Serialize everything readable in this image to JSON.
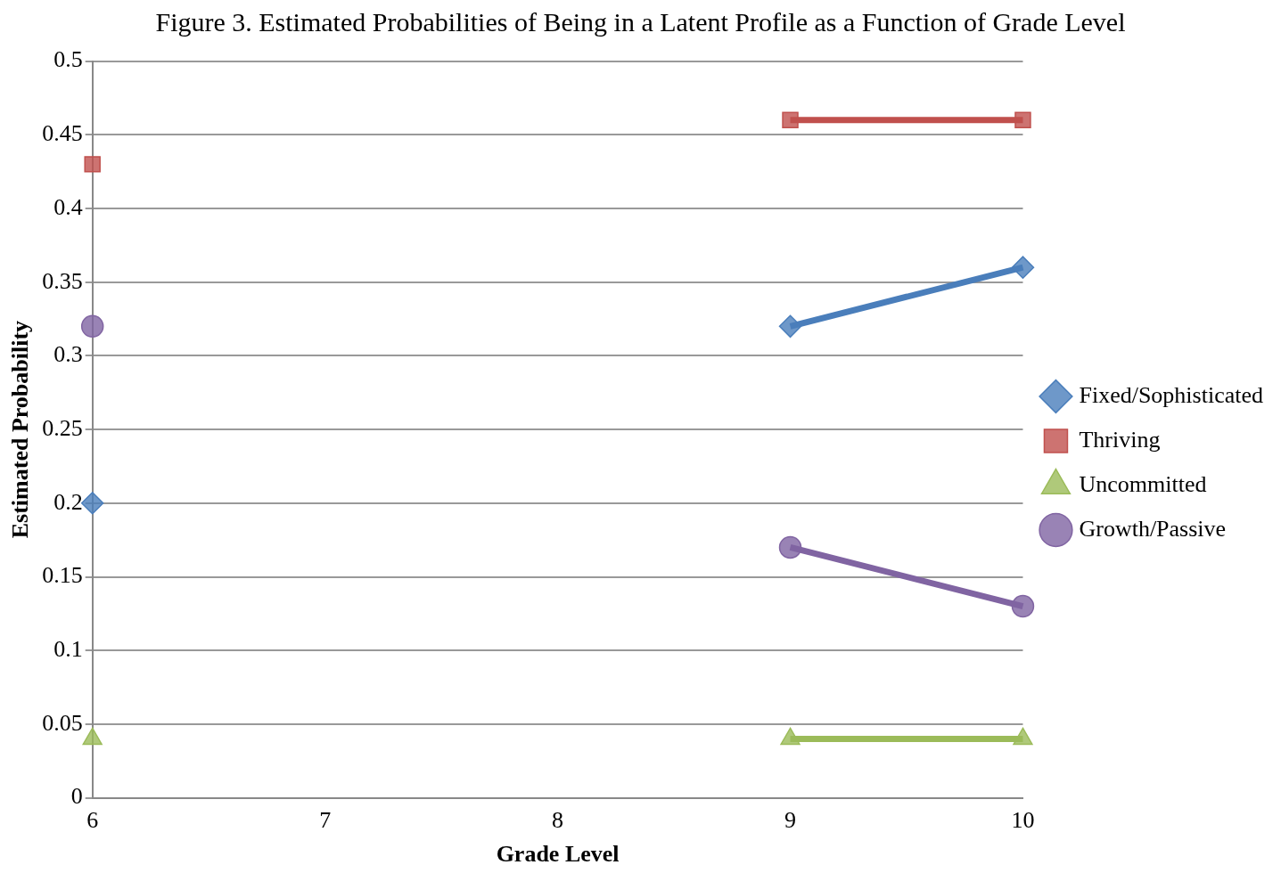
{
  "chart_data": {
    "type": "line",
    "title": "Figure 3.  Estimated Probabilities of Being in a Latent Profile as a Function of Grade Level",
    "xlabel": "Grade Level",
    "ylabel": "Estimated Probability",
    "x": [
      6,
      7,
      8,
      9,
      10
    ],
    "xlim": [
      6,
      10
    ],
    "xticks": [
      6,
      7,
      8,
      9,
      10
    ],
    "ylim": [
      0,
      0.5
    ],
    "yticks": [
      0,
      0.05,
      0.1,
      0.15,
      0.2,
      0.25,
      0.3,
      0.35,
      0.4,
      0.45,
      0.5
    ],
    "grid": "y",
    "legend": "right",
    "line_style": "solid",
    "series": [
      {
        "name": "Fixed/Sophisticated",
        "color": "#4a7ebb",
        "marker": "diamond",
        "values": [
          0.2,
          null,
          null,
          0.32,
          0.36
        ]
      },
      {
        "name": "Thriving",
        "color": "#c0504d",
        "marker": "square",
        "values": [
          0.43,
          null,
          null,
          0.46,
          0.46
        ]
      },
      {
        "name": "Uncommitted",
        "color": "#9bbb59",
        "marker": "triangle",
        "values": [
          0.04,
          null,
          null,
          0.04,
          0.04
        ]
      },
      {
        "name": "Growth/Passive",
        "color": "#8064a2",
        "marker": "circle",
        "values": [
          0.32,
          null,
          null,
          0.17,
          0.13
        ]
      }
    ]
  }
}
